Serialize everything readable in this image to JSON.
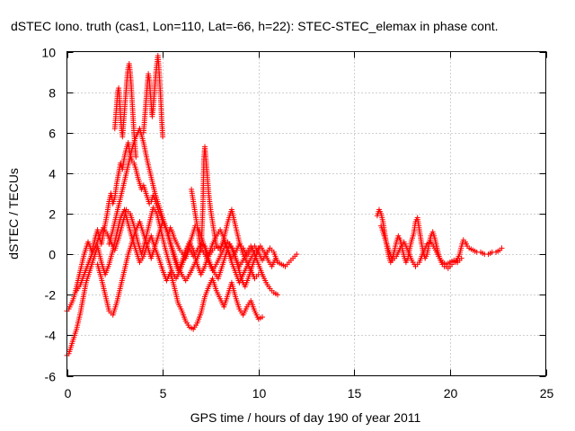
{
  "chart_data": {
    "type": "scatter",
    "title": "dSTEC Iono. truth (cas1, Lon=110, Lat=-66, h=22): STEC-STEC_elemax in phase cont.",
    "xlabel": "GPS time / hours of day 190 of year 2011",
    "ylabel": "dSTEC  / TECUs",
    "xlim": [
      0,
      25
    ],
    "ylim": [
      -6,
      10
    ],
    "xticks": [
      "0",
      "5",
      "10",
      "15",
      "20",
      "25"
    ],
    "yticks": [
      "-6",
      "-4",
      "-2",
      "0",
      "2",
      "4",
      "6",
      "8",
      "10"
    ],
    "grid": true,
    "marker": "plus",
    "color": "#ff0000",
    "series": [
      {
        "x": [
          0.0,
          0.1,
          0.2,
          0.3,
          0.4,
          0.5,
          0.6,
          0.7,
          0.8,
          0.9,
          1.0,
          1.1,
          1.2,
          1.3,
          1.4,
          1.5,
          1.6,
          1.7,
          1.8,
          1.9,
          2.0,
          2.1,
          2.2,
          2.3,
          2.4,
          2.5,
          2.6,
          2.7,
          2.8,
          2.9,
          3.0,
          3.1,
          3.2,
          3.3,
          3.4,
          3.5,
          3.6,
          3.7,
          3.8,
          3.9,
          4.0,
          4.1,
          4.2,
          4.3,
          4.4,
          4.5,
          4.6,
          4.7,
          4.8,
          4.9,
          5.0,
          5.1,
          5.2,
          5.3,
          5.4,
          5.5,
          5.6,
          5.7,
          5.8,
          5.9,
          6.0,
          6.2,
          6.4,
          6.6,
          6.8,
          7.0,
          7.2,
          7.4,
          7.6,
          7.8,
          8.0,
          8.2,
          8.4,
          8.6,
          8.8,
          9.0,
          9.2,
          9.4,
          9.6,
          9.8,
          10.0,
          10.2,
          10.4,
          10.6,
          10.8,
          11.0,
          11.2,
          11.4,
          11.6,
          11.8,
          12.0
        ],
        "y": [
          -2.8,
          -2.7,
          -2.5,
          -2.3,
          -2.0,
          -1.6,
          -1.2,
          -0.8,
          -0.4,
          0.0,
          0.3,
          0.6,
          0.4,
          0.1,
          0.5,
          0.9,
          1.2,
          0.8,
          0.5,
          1.0,
          1.5,
          2.0,
          2.6,
          3.0,
          2.5,
          2.8,
          3.5,
          4.0,
          4.5,
          4.2,
          4.8,
          5.2,
          5.5,
          4.9,
          4.6,
          4.5,
          4.2,
          3.8,
          3.5,
          3.2,
          3.4,
          3.1,
          2.8,
          2.5,
          2.6,
          2.9,
          2.7,
          2.4,
          2.1,
          1.9,
          1.6,
          1.5,
          1.2,
          1.0,
          1.3,
          1.1,
          0.8,
          0.6,
          0.4,
          0.2,
          0.1,
          -0.2,
          0.3,
          -0.1,
          0.2,
          0.5,
          0.4,
          -0.1,
          0.2,
          0.4,
          0.3,
          0.6,
          0.2,
          -0.2,
          0.1,
          0.5,
          0.3,
          -0.1,
          0.2,
          0.4,
          0.1,
          -0.3,
          0.0,
          0.3,
          0.1,
          -0.4,
          -0.5,
          -0.6,
          -0.4,
          -0.2,
          0.0
        ]
      },
      {
        "x": [
          0.0,
          0.1,
          0.2,
          0.3,
          0.4,
          0.5,
          0.6,
          0.7,
          0.8,
          0.9,
          1.0,
          1.2,
          1.4,
          1.6,
          1.8,
          2.0,
          2.2,
          2.4,
          2.6,
          2.8,
          3.0,
          3.2,
          3.4,
          3.6,
          3.8,
          4.0,
          4.2,
          4.4,
          4.6,
          4.8,
          5.0,
          5.2,
          5.4,
          5.6,
          5.8,
          6.0,
          6.2,
          6.4,
          6.6,
          6.8,
          7.0,
          7.2,
          7.4,
          7.6,
          7.8,
          8.0,
          8.2,
          8.4,
          8.6,
          8.8,
          9.0,
          9.2,
          9.4,
          9.6,
          9.8,
          10.0,
          10.2
        ],
        "y": [
          -5.0,
          -4.9,
          -4.6,
          -4.3,
          -4.0,
          -3.7,
          -3.3,
          -2.9,
          -2.4,
          -1.9,
          -1.4,
          -0.8,
          -0.2,
          0.4,
          -0.4,
          -1.0,
          -0.5,
          0.2,
          1.0,
          1.8,
          2.2,
          1.5,
          0.8,
          0.2,
          -0.4,
          -0.1,
          0.5,
          0.9,
          0.3,
          -0.2,
          -0.8,
          -1.3,
          -0.9,
          -1.6,
          -2.4,
          -2.8,
          -3.3,
          -3.6,
          -3.7,
          -3.4,
          -2.9,
          -2.1,
          -1.6,
          -1.2,
          -1.8,
          -2.2,
          -2.6,
          -2.0,
          -1.4,
          -2.1,
          -2.7,
          -3.0,
          -2.6,
          -2.3,
          -2.8,
          -3.2,
          -3.1
        ]
      },
      {
        "x": [
          0.5,
          0.7,
          0.9,
          1.1,
          1.3,
          1.5,
          1.7,
          1.9,
          2.1,
          2.3,
          2.5,
          2.7,
          2.9,
          3.1,
          3.3,
          3.5,
          3.7,
          3.9,
          4.1,
          4.3,
          4.5,
          4.7,
          4.9,
          5.1,
          5.3,
          5.5,
          5.7,
          5.9,
          6.1,
          6.3,
          6.5,
          6.7,
          6.9,
          7.1,
          7.3,
          7.5,
          7.7,
          7.9,
          8.1,
          8.3,
          8.5,
          8.7,
          8.9,
          9.1,
          9.3,
          9.5,
          9.7,
          9.9,
          10.1,
          10.3,
          10.5,
          10.7,
          10.9
        ],
        "y": [
          -1.8,
          -1.5,
          -1.0,
          -0.5,
          0.0,
          0.4,
          0.9,
          1.3,
          1.0,
          0.6,
          0.2,
          0.8,
          1.5,
          2.2,
          2.0,
          1.4,
          0.6,
          0.0,
          0.7,
          1.5,
          2.3,
          2.0,
          1.2,
          0.4,
          -0.3,
          -0.9,
          -1.2,
          -0.8,
          -0.3,
          0.2,
          0.8,
          1.4,
          1.2,
          0.6,
          0.0,
          -0.5,
          -0.9,
          -1.2,
          -0.6,
          0.0,
          0.5,
          0.2,
          -0.5,
          -1.2,
          -1.6,
          -1.1,
          -0.5,
          0.0,
          0.4,
          0.1,
          -0.3,
          -0.6,
          -0.2
        ]
      },
      {
        "x": [
          1.6,
          1.8,
          2.0,
          2.2,
          2.4,
          2.6,
          2.8,
          3.0,
          3.2,
          3.4,
          3.6,
          3.8,
          4.0,
          4.2,
          4.4,
          4.6,
          4.8,
          5.0,
          5.2,
          5.4,
          5.6,
          5.8,
          6.0,
          6.2,
          6.4,
          6.6,
          6.8,
          7.0,
          7.2,
          7.4,
          7.6,
          7.8,
          8.0,
          8.2,
          8.4,
          8.6,
          8.8,
          9.0,
          9.2,
          9.4,
          9.6,
          9.8,
          10.0
        ],
        "y": [
          -0.5,
          -1.2,
          -2.0,
          -2.8,
          -3.0,
          -2.4,
          -1.6,
          -0.8,
          0.0,
          0.6,
          1.2,
          1.6,
          1.0,
          0.4,
          -0.2,
          0.4,
          1.0,
          1.6,
          1.2,
          0.5,
          -0.2,
          -0.8,
          -0.4,
          0.2,
          0.6,
          0.2,
          -0.5,
          -1.0,
          -0.6,
          0.0,
          0.5,
          0.9,
          1.2,
          0.8,
          0.2,
          -0.4,
          -0.9,
          -1.4,
          -1.0,
          -0.6,
          -0.2,
          0.1,
          0.3
        ]
      },
      {
        "x": [
          2.2,
          2.4,
          2.6,
          2.8,
          3.0,
          3.2,
          3.4,
          3.6,
          3.8,
          4.0,
          4.2,
          4.4,
          4.6,
          4.8,
          5.0,
          5.2,
          5.4,
          5.6,
          5.8,
          6.0,
          6.2,
          6.4,
          6.6,
          6.8,
          7.0,
          7.2,
          7.4,
          7.6,
          7.8,
          8.0,
          8.2,
          8.4,
          8.6,
          8.8,
          9.0,
          9.2,
          9.4,
          9.6,
          9.8,
          10.0,
          10.2,
          10.4,
          10.6,
          10.8,
          11.0
        ],
        "y": [
          0.5,
          1.2,
          2.0,
          2.8,
          3.6,
          4.4,
          5.2,
          5.8,
          6.2,
          5.5,
          4.6,
          3.8,
          3.0,
          2.4,
          1.8,
          1.2,
          0.6,
          0.0,
          -0.6,
          -1.0,
          -1.3,
          -1.0,
          -0.6,
          -0.2,
          0.3,
          0.0,
          -0.4,
          -0.8,
          -0.5,
          -0.1,
          0.3,
          0.6,
          0.3,
          -0.2,
          -0.6,
          -0.3,
          0.1,
          0.4,
          0.0,
          -0.5,
          -1.0,
          -1.4,
          -1.7,
          -1.9,
          -2.0
        ]
      },
      {
        "x": [
          2.5,
          2.55,
          2.6,
          2.65,
          2.7,
          2.75,
          2.8,
          2.85,
          2.9,
          2.95,
          3.0,
          3.05,
          3.1,
          3.15,
          3.2,
          3.25,
          3.3,
          3.35,
          3.4,
          3.45,
          3.5,
          3.55,
          3.6
        ],
        "y": [
          6.2,
          6.8,
          7.4,
          8.0,
          8.2,
          7.6,
          6.8,
          6.2,
          5.8,
          6.4,
          7.0,
          7.6,
          8.2,
          8.8,
          9.2,
          9.4,
          9.0,
          8.4,
          7.6,
          6.8,
          6.0,
          5.4,
          4.8
        ]
      },
      {
        "x": [
          4.0,
          4.05,
          4.1,
          4.15,
          4.2,
          4.25,
          4.3,
          4.35,
          4.4,
          4.45,
          4.5,
          4.55,
          4.6,
          4.65,
          4.7,
          4.75,
          4.8,
          4.85,
          4.9,
          4.95,
          5.0
        ],
        "y": [
          6.0,
          6.6,
          7.2,
          7.8,
          8.4,
          8.9,
          8.6,
          8.0,
          7.4,
          6.8,
          7.2,
          7.8,
          8.4,
          9.0,
          9.4,
          9.8,
          9.2,
          8.4,
          7.6,
          6.6,
          5.8
        ]
      },
      {
        "x": [
          6.5,
          6.6,
          6.7,
          6.8,
          6.9,
          7.0,
          7.05,
          7.1,
          7.15,
          7.2,
          7.3,
          7.4,
          7.5,
          7.6,
          7.7,
          7.8,
          8.0,
          8.2,
          8.4,
          8.6,
          8.8,
          9.0,
          9.2,
          9.4,
          9.6,
          9.8,
          10.0
        ],
        "y": [
          3.2,
          2.6,
          2.0,
          1.4,
          0.8,
          0.2,
          1.2,
          2.4,
          4.7,
          5.3,
          4.2,
          3.0,
          2.2,
          1.6,
          1.0,
          0.4,
          0.2,
          0.8,
          1.6,
          2.2,
          1.4,
          0.6,
          0.0,
          -0.4,
          -0.8,
          -1.2,
          -1.0
        ]
      },
      {
        "x": [
          16.2,
          16.3,
          16.4,
          16.5,
          16.6,
          16.7,
          16.8,
          16.9,
          17.0,
          17.1,
          17.2,
          17.3,
          17.4,
          17.5,
          17.6,
          17.7,
          17.8,
          17.9,
          18.0,
          18.1,
          18.2,
          18.3,
          18.4,
          18.5,
          18.6,
          18.7,
          18.8,
          18.9,
          19.0,
          19.1,
          19.2,
          19.3,
          19.4,
          19.5,
          19.6,
          19.7,
          19.8,
          19.9,
          20.0,
          20.1,
          20.2,
          20.3,
          20.4,
          20.5,
          20.6,
          20.7,
          20.8,
          20.9,
          21.0,
          21.2,
          21.4,
          21.6,
          21.8,
          22.0,
          22.2,
          22.4,
          22.6,
          22.7
        ],
        "y": [
          1.9,
          2.2,
          2.0,
          1.6,
          1.0,
          0.4,
          -0.1,
          -0.4,
          -0.2,
          0.2,
          0.6,
          0.9,
          0.7,
          0.3,
          -0.1,
          -0.4,
          -0.2,
          0.3,
          0.7,
          1.0,
          1.6,
          1.8,
          1.2,
          0.6,
          0.1,
          -0.2,
          0.0,
          0.5,
          0.9,
          1.1,
          0.8,
          0.4,
          0.0,
          -0.3,
          -0.5,
          -0.6,
          -0.6,
          -0.7,
          -0.6,
          -0.5,
          -0.4,
          -0.4,
          -0.2,
          0.0,
          0.4,
          0.7,
          0.6,
          0.4,
          0.3,
          0.2,
          0.1,
          0.1,
          0.0,
          0.0,
          0.1,
          0.1,
          0.2,
          0.3
        ]
      },
      {
        "x": [
          16.4,
          16.6,
          16.8,
          17.0,
          17.2,
          17.4,
          17.6,
          17.8,
          18.0,
          18.2,
          18.4,
          18.6,
          18.8,
          19.0,
          19.2,
          19.4,
          19.6,
          19.8,
          20.0,
          20.2,
          20.4,
          20.6
        ],
        "y": [
          1.4,
          0.8,
          0.2,
          -0.3,
          -0.1,
          0.3,
          0.6,
          0.2,
          -0.3,
          -0.6,
          -0.4,
          0.1,
          0.5,
          0.6,
          0.3,
          -0.1,
          -0.4,
          -0.5,
          -0.4,
          -0.3,
          -0.4,
          -0.2
        ]
      }
    ]
  }
}
